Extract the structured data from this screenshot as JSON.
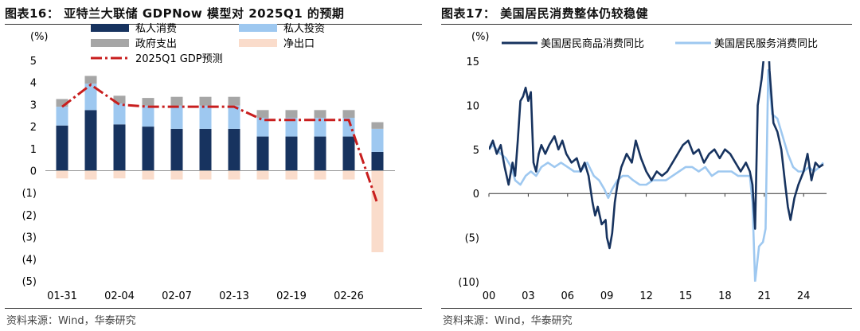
{
  "charts": [
    {
      "id": "left",
      "title": "图表16：  亚特兰大联储 GDPNow 模型对 2025Q1 的预期",
      "source": "资料来源：Wind，华泰研究"
    },
    {
      "id": "right",
      "title": "图表17：  美国居民消费整体仍较稳健",
      "source": "资料来源：Wind，华泰研究"
    }
  ],
  "colors": {
    "private_consumption": "#17335f",
    "private_investment": "#9ec8f0",
    "government": "#a6a6a6",
    "net_exports": "#fadccb",
    "forecast": "#c81e1e",
    "goods": "#17335f",
    "services": "#9ec8f0"
  },
  "chart_data": [
    {
      "type": "bar",
      "stacked": true,
      "unit_label": "(%)",
      "ylim": [
        -5,
        5
      ],
      "y_ticks": [
        "5",
        "4",
        "3",
        "2",
        "1",
        "0",
        "(1)",
        "(2)",
        "(3)",
        "(4)",
        "(5)"
      ],
      "x_tick_labels": [
        "01-31",
        "02-04",
        "02-07",
        "02-13",
        "02-19",
        "02-26"
      ],
      "legend_placement": "top",
      "series": [
        {
          "name": "私人消费",
          "kind": "bar",
          "color_key": "private_consumption",
          "values": [
            2.05,
            2.75,
            2.1,
            2.0,
            1.9,
            1.9,
            1.9,
            1.55,
            1.55,
            1.55,
            1.55,
            0.85
          ]
        },
        {
          "name": "私人投资",
          "kind": "bar",
          "color_key": "private_investment",
          "values": [
            0.85,
            1.2,
            0.95,
            0.95,
            1.05,
            1.05,
            1.05,
            0.85,
            0.85,
            0.85,
            0.85,
            1.05
          ]
        },
        {
          "name": "政府支出",
          "kind": "bar",
          "color_key": "government",
          "values": [
            0.35,
            0.35,
            0.35,
            0.35,
            0.4,
            0.4,
            0.4,
            0.35,
            0.35,
            0.35,
            0.35,
            0.3
          ]
        },
        {
          "name": "净出口",
          "kind": "bar",
          "color_key": "net_exports",
          "values": [
            -0.35,
            -0.4,
            -0.35,
            -0.4,
            -0.4,
            -0.4,
            -0.4,
            -0.4,
            -0.4,
            -0.4,
            -0.4,
            -3.7
          ]
        },
        {
          "name": "2025Q1 GDP预测",
          "kind": "line",
          "color_key": "forecast",
          "values": [
            2.9,
            3.9,
            3.0,
            2.9,
            2.9,
            2.9,
            2.9,
            2.3,
            2.3,
            2.3,
            2.3,
            -1.5
          ]
        }
      ]
    },
    {
      "type": "line",
      "unit_label": "(%)",
      "ylim": [
        -10,
        15
      ],
      "y_ticks": [
        "15",
        "10",
        "5",
        "0",
        "(5)",
        "(10)"
      ],
      "x_tick_labels": [
        "00",
        "03",
        "06",
        "09",
        "12",
        "15",
        "18",
        "21",
        "24"
      ],
      "x_range": [
        2000,
        2025.75
      ],
      "legend_placement": "top",
      "series": [
        {
          "name": "美国居民商品消费同比",
          "color_key": "goods",
          "points": [
            [
              2000.0,
              5.0
            ],
            [
              2000.3,
              6.0
            ],
            [
              2000.6,
              4.5
            ],
            [
              2000.9,
              5.5
            ],
            [
              2001.2,
              3.0
            ],
            [
              2001.5,
              1.0
            ],
            [
              2001.8,
              3.5
            ],
            [
              2002.0,
              2.0
            ],
            [
              2002.2,
              6.0
            ],
            [
              2002.4,
              10.5
            ],
            [
              2002.6,
              11.0
            ],
            [
              2002.8,
              12.0
            ],
            [
              2003.0,
              10.5
            ],
            [
              2003.2,
              11.5
            ],
            [
              2003.4,
              3.5
            ],
            [
              2003.6,
              2.5
            ],
            [
              2003.8,
              4.5
            ],
            [
              2004.0,
              5.5
            ],
            [
              2004.3,
              4.5
            ],
            [
              2004.6,
              5.5
            ],
            [
              2005.0,
              6.5
            ],
            [
              2005.3,
              5.0
            ],
            [
              2005.6,
              6.0
            ],
            [
              2005.9,
              4.5
            ],
            [
              2006.3,
              3.5
            ],
            [
              2006.7,
              4.0
            ],
            [
              2007.0,
              2.5
            ],
            [
              2007.3,
              3.5
            ],
            [
              2007.6,
              2.0
            ],
            [
              2007.9,
              -1.0
            ],
            [
              2008.1,
              -2.5
            ],
            [
              2008.3,
              -1.5
            ],
            [
              2008.6,
              -3.5
            ],
            [
              2008.9,
              -3.0
            ],
            [
              2009.0,
              -5.0
            ],
            [
              2009.2,
              -6.2
            ],
            [
              2009.4,
              -4.5
            ],
            [
              2009.6,
              -1.0
            ],
            [
              2009.8,
              1.0
            ],
            [
              2010.1,
              3.0
            ],
            [
              2010.5,
              4.5
            ],
            [
              2010.9,
              3.5
            ],
            [
              2011.2,
              6.0
            ],
            [
              2011.6,
              4.0
            ],
            [
              2012.0,
              2.5
            ],
            [
              2012.4,
              1.5
            ],
            [
              2012.8,
              2.5
            ],
            [
              2013.2,
              2.0
            ],
            [
              2013.6,
              2.5
            ],
            [
              2014.0,
              3.5
            ],
            [
              2014.4,
              4.5
            ],
            [
              2014.8,
              5.5
            ],
            [
              2015.2,
              6.0
            ],
            [
              2015.6,
              4.5
            ],
            [
              2016.0,
              5.0
            ],
            [
              2016.4,
              3.5
            ],
            [
              2016.8,
              4.5
            ],
            [
              2017.2,
              5.0
            ],
            [
              2017.6,
              4.0
            ],
            [
              2018.0,
              5.0
            ],
            [
              2018.4,
              4.5
            ],
            [
              2018.8,
              3.5
            ],
            [
              2019.2,
              2.5
            ],
            [
              2019.6,
              3.5
            ],
            [
              2019.9,
              2.5
            ],
            [
              2020.1,
              1.0
            ],
            [
              2020.3,
              -4.0
            ],
            [
              2020.5,
              10.0
            ],
            [
              2020.8,
              13.0
            ],
            [
              2021.0,
              16.0
            ],
            [
              2021.2,
              22.0
            ],
            [
              2021.4,
              14.0
            ],
            [
              2021.7,
              8.0
            ],
            [
              2022.0,
              7.0
            ],
            [
              2022.3,
              5.0
            ],
            [
              2022.6,
              1.0
            ],
            [
              2022.8,
              -1.5
            ],
            [
              2023.0,
              -3.0
            ],
            [
              2023.3,
              -0.5
            ],
            [
              2023.6,
              1.0
            ],
            [
              2024.0,
              2.5
            ],
            [
              2024.3,
              4.5
            ],
            [
              2024.6,
              1.5
            ],
            [
              2024.9,
              3.5
            ],
            [
              2025.2,
              3.0
            ],
            [
              2025.5,
              3.3
            ]
          ]
        },
        {
          "name": "美国居民服务消费同比",
          "color_key": "services",
          "points": [
            [
              2000.0,
              5.0
            ],
            [
              2000.3,
              5.5
            ],
            [
              2000.6,
              5.0
            ],
            [
              2000.9,
              4.5
            ],
            [
              2001.3,
              4.0
            ],
            [
              2001.7,
              3.0
            ],
            [
              2002.0,
              1.5
            ],
            [
              2002.4,
              1.0
            ],
            [
              2002.8,
              2.0
            ],
            [
              2003.2,
              2.5
            ],
            [
              2003.6,
              2.0
            ],
            [
              2004.0,
              3.0
            ],
            [
              2004.5,
              3.5
            ],
            [
              2005.0,
              3.0
            ],
            [
              2005.5,
              3.5
            ],
            [
              2006.0,
              3.0
            ],
            [
              2006.5,
              2.5
            ],
            [
              2007.0,
              2.5
            ],
            [
              2007.5,
              3.5
            ],
            [
              2008.0,
              2.0
            ],
            [
              2008.4,
              1.5
            ],
            [
              2008.8,
              0.5
            ],
            [
              2009.1,
              -0.5
            ],
            [
              2009.4,
              0.5
            ],
            [
              2009.8,
              1.5
            ],
            [
              2010.2,
              2.0
            ],
            [
              2010.6,
              2.0
            ],
            [
              2011.0,
              1.5
            ],
            [
              2011.5,
              1.0
            ],
            [
              2012.0,
              1.0
            ],
            [
              2012.5,
              1.5
            ],
            [
              2013.0,
              1.5
            ],
            [
              2013.5,
              1.5
            ],
            [
              2014.0,
              2.0
            ],
            [
              2014.5,
              2.5
            ],
            [
              2015.0,
              3.0
            ],
            [
              2015.5,
              3.0
            ],
            [
              2016.0,
              2.5
            ],
            [
              2016.5,
              3.0
            ],
            [
              2017.0,
              2.0
            ],
            [
              2017.5,
              2.5
            ],
            [
              2018.0,
              2.5
            ],
            [
              2018.5,
              2.5
            ],
            [
              2019.0,
              2.0
            ],
            [
              2019.5,
              2.0
            ],
            [
              2019.9,
              2.0
            ],
            [
              2020.1,
              -1.0
            ],
            [
              2020.3,
              -10.0
            ],
            [
              2020.6,
              -6.0
            ],
            [
              2020.9,
              -5.5
            ],
            [
              2021.1,
              -4.0
            ],
            [
              2021.3,
              14.0
            ],
            [
              2021.6,
              9.0
            ],
            [
              2022.0,
              8.5
            ],
            [
              2022.4,
              6.5
            ],
            [
              2022.8,
              4.5
            ],
            [
              2023.2,
              3.0
            ],
            [
              2023.6,
              2.5
            ],
            [
              2024.0,
              2.5
            ],
            [
              2024.4,
              3.0
            ],
            [
              2024.8,
              2.5
            ],
            [
              2025.2,
              3.0
            ],
            [
              2025.5,
              3.5
            ]
          ]
        }
      ]
    }
  ]
}
